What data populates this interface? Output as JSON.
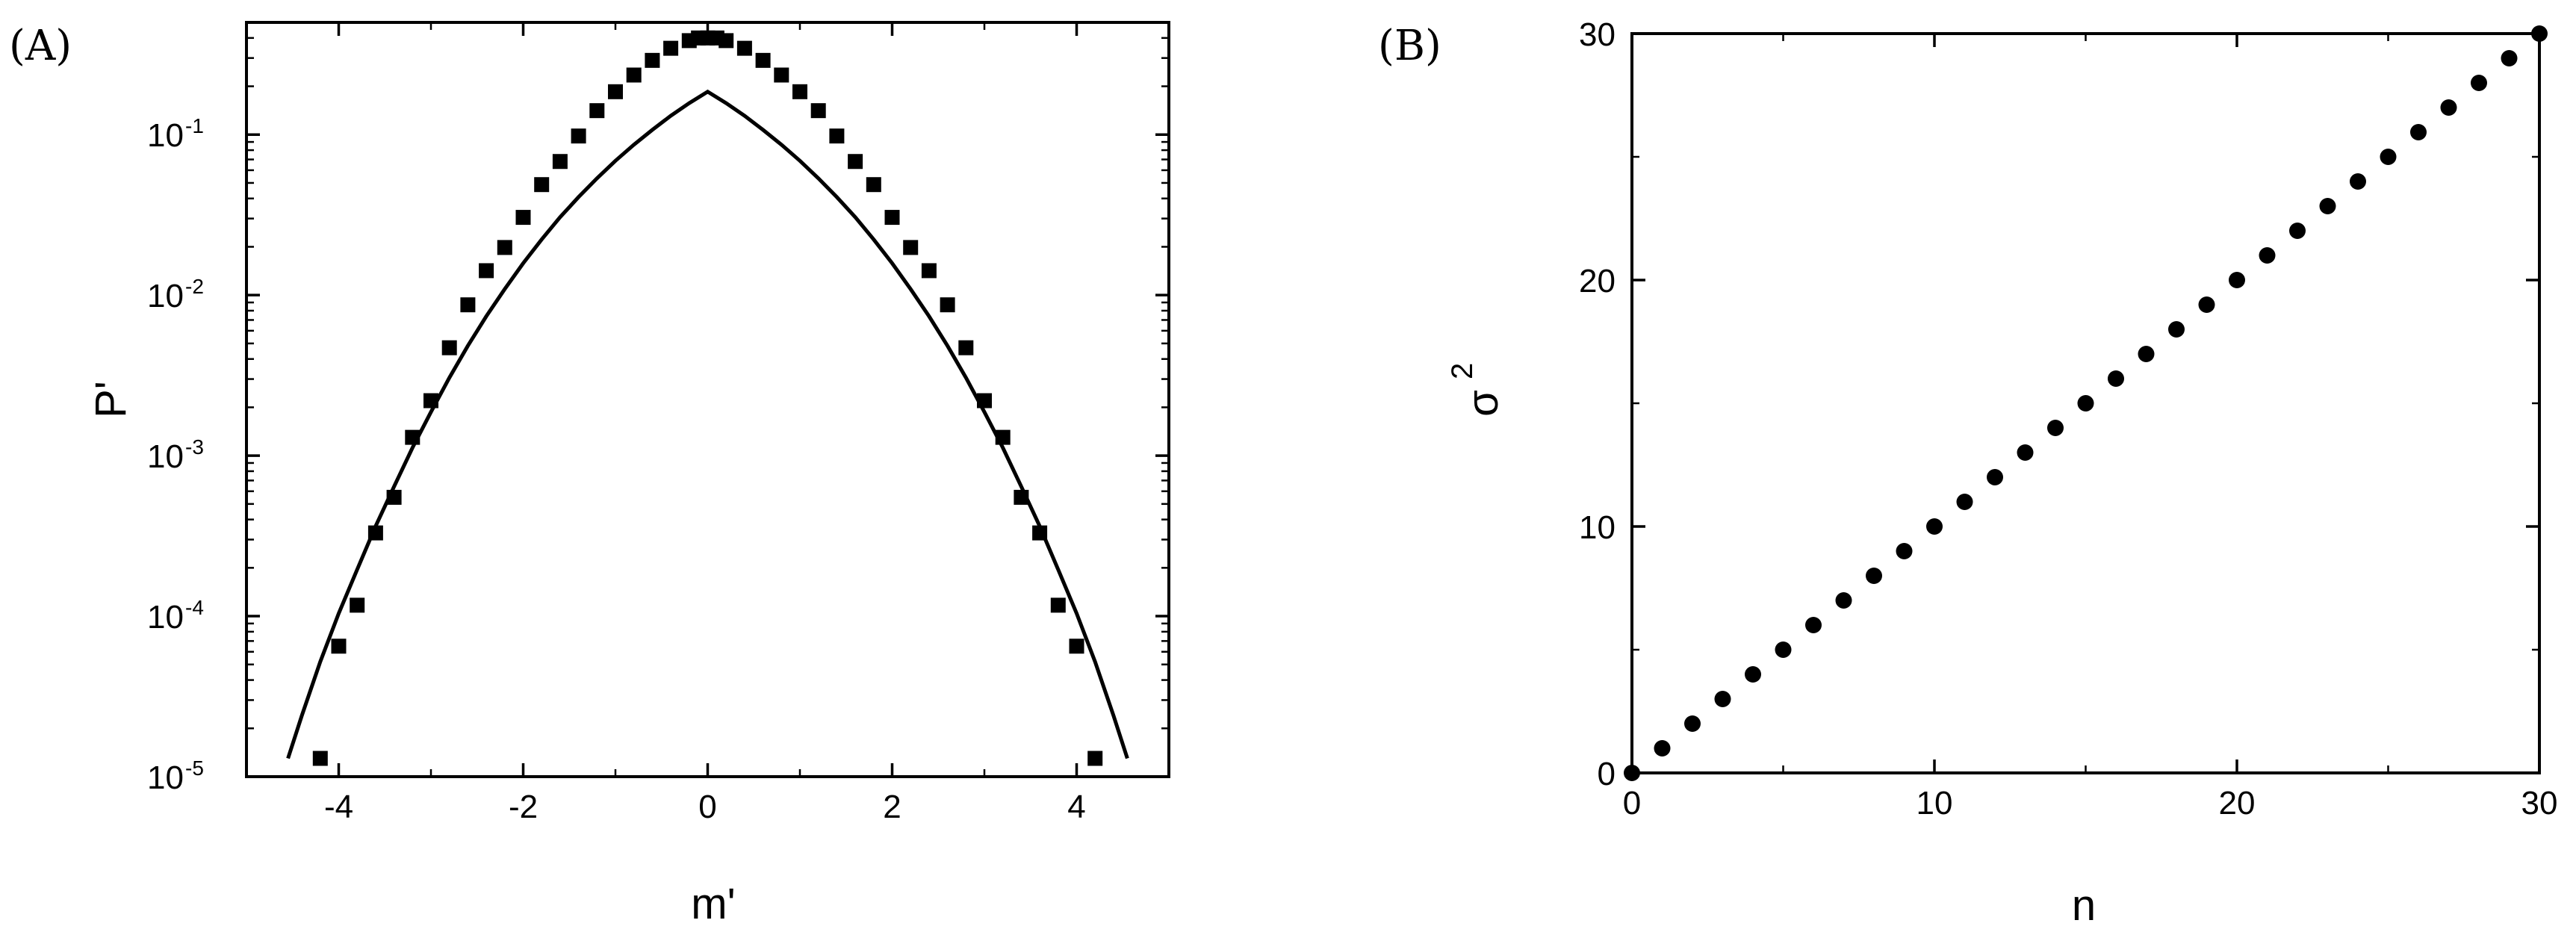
{
  "chart_data": [
    {
      "panel_label": "(A)",
      "type": "scatter",
      "xlabel": "m'",
      "ylabel": "P'",
      "xlim": [
        -5,
        5
      ],
      "ylim": [
        1e-05,
        0.5
      ],
      "yscale": "log",
      "grid": false,
      "xticks": [
        {
          "value": -4,
          "label": "-4"
        },
        {
          "value": -2,
          "label": "-2"
        },
        {
          "value": 0,
          "label": "0"
        },
        {
          "value": 2,
          "label": "2"
        },
        {
          "value": 4,
          "label": "4"
        }
      ],
      "yticks": [
        {
          "value": 1e-05,
          "base": "10",
          "exp": "-5"
        },
        {
          "value": 0.0001,
          "base": "10",
          "exp": "-4"
        },
        {
          "value": 0.001,
          "base": "10",
          "exp": "-3"
        },
        {
          "value": 0.01,
          "base": "10",
          "exp": "-2"
        },
        {
          "value": 0.1,
          "base": "10",
          "exp": "-1"
        }
      ],
      "series": [
        {
          "marker": "square",
          "x": [
            -4.2,
            -4.0,
            -3.8,
            -3.6,
            -3.4,
            -3.2,
            -3.0,
            -2.8,
            -2.6,
            -2.4,
            -2.2,
            -2.0,
            -1.8,
            -1.6,
            -1.4,
            -1.2,
            -1.0,
            -0.8,
            -0.6,
            -0.4,
            -0.2,
            -0.1,
            0.0,
            0.1,
            0.2,
            0.4,
            0.6,
            0.8,
            1.0,
            1.2,
            1.4,
            1.6,
            1.8,
            2.0,
            2.2,
            2.4,
            2.6,
            2.8,
            3.0,
            3.2,
            3.4,
            3.6,
            3.8,
            4.0,
            4.2
          ],
          "y": [
            1.3e-05,
            6.5e-05,
            0.000117,
            0.00033,
            0.00055,
            0.0013,
            0.0022,
            0.0047,
            0.0087,
            0.0142,
            0.0198,
            0.0305,
            0.0488,
            0.068,
            0.098,
            0.141,
            0.185,
            0.235,
            0.29,
            0.345,
            0.385,
            0.4,
            0.4,
            0.4,
            0.385,
            0.345,
            0.29,
            0.235,
            0.185,
            0.141,
            0.098,
            0.068,
            0.0488,
            0.0305,
            0.0198,
            0.0142,
            0.0087,
            0.0047,
            0.0022,
            0.0013,
            0.00055,
            0.00033,
            0.000117,
            6.5e-05,
            1.3e-05
          ]
        },
        {
          "marker": "line",
          "x": [
            -4.55,
            -4.4,
            -4.2,
            -4.0,
            -3.8,
            -3.6,
            -3.4,
            -3.2,
            -3.0,
            -2.8,
            -2.6,
            -2.4,
            -2.2,
            -2.0,
            -1.8,
            -1.6,
            -1.4,
            -1.2,
            -1.0,
            -0.8,
            -0.6,
            -0.4,
            -0.2,
            0.0,
            0.2,
            0.4,
            0.6,
            0.8,
            1.0,
            1.2,
            1.4,
            1.6,
            1.8,
            2.0,
            2.2,
            2.4,
            2.6,
            2.8,
            3.0,
            3.2,
            3.4,
            3.6,
            3.8,
            4.0,
            4.2,
            4.4,
            4.55
          ],
          "y": [
            1.3e-05,
            2.4e-05,
            5.2e-05,
            0.000104,
            0.000195,
            0.000363,
            0.000641,
            0.00112,
            0.00187,
            0.00306,
            0.00483,
            0.00738,
            0.0109,
            0.0158,
            0.0222,
            0.0306,
            0.0408,
            0.0534,
            0.0687,
            0.0865,
            0.107,
            0.131,
            0.157,
            0.185,
            0.157,
            0.131,
            0.107,
            0.0865,
            0.0687,
            0.0534,
            0.0408,
            0.0306,
            0.0222,
            0.0158,
            0.0109,
            0.00738,
            0.00483,
            0.00306,
            0.00187,
            0.00112,
            0.000641,
            0.000363,
            0.000195,
            0.000104,
            5.2e-05,
            2.4e-05,
            1.3e-05
          ]
        }
      ]
    },
    {
      "panel_label": "(B)",
      "type": "scatter",
      "xlabel": "n",
      "ylabel": "σ",
      "ylabel_sup": "2",
      "xlim": [
        0,
        30
      ],
      "ylim": [
        0,
        30
      ],
      "yscale": "linear",
      "grid": false,
      "xticks": [
        {
          "value": 0,
          "label": "0"
        },
        {
          "value": 10,
          "label": "10"
        },
        {
          "value": 20,
          "label": "20"
        },
        {
          "value": 30,
          "label": "30"
        }
      ],
      "yticks": [
        {
          "value": 0,
          "label": "0"
        },
        {
          "value": 10,
          "label": "10"
        },
        {
          "value": 20,
          "label": "20"
        },
        {
          "value": 30,
          "label": "30"
        }
      ],
      "series": [
        {
          "marker": "circle",
          "x": [
            0,
            1,
            2,
            3,
            4,
            5,
            6,
            7,
            8,
            9,
            10,
            11,
            12,
            13,
            14,
            15,
            16,
            17,
            18,
            19,
            20,
            21,
            22,
            23,
            24,
            25,
            26,
            27,
            28,
            29,
            30
          ],
          "y": [
            0,
            1,
            2,
            3,
            4,
            5,
            6,
            7,
            8,
            9,
            10,
            11,
            12,
            13,
            14,
            15,
            16,
            17,
            18,
            19,
            20,
            21,
            22,
            23,
            24,
            25,
            26,
            27,
            28,
            29,
            30
          ]
        }
      ]
    }
  ]
}
